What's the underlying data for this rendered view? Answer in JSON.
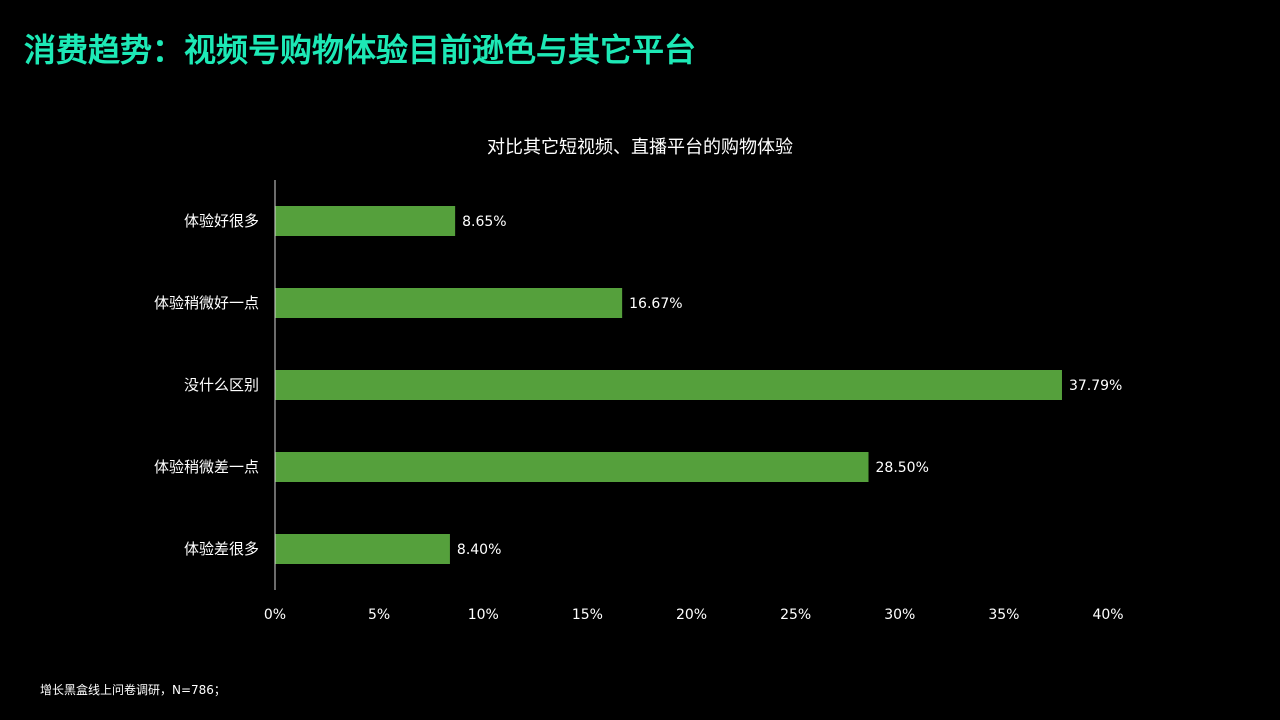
{
  "slide": {
    "title": "消费趋势：视频号购物体验目前逊色与其它平台",
    "footnote": "增长黑盒线上问卷调研，N=786；"
  },
  "colors": {
    "background": "#000000",
    "title": "#1de9b6",
    "bar": "#55a03c",
    "text": "#ffffff"
  },
  "chart_data": {
    "type": "bar",
    "orientation": "horizontal",
    "title": "对比其它短视频、直播平台的购物体验",
    "categories": [
      "体验好很多",
      "体验稍微好一点",
      "没什么区别",
      "体验稍微差一点",
      "体验差很多"
    ],
    "values": [
      8.65,
      16.67,
      37.79,
      28.5,
      8.4
    ],
    "value_labels": [
      "8.65%",
      "16.67%",
      "37.79%",
      "28.50%",
      "8.40%"
    ],
    "x_ticks": [
      "0%",
      "5%",
      "10%",
      "15%",
      "20%",
      "25%",
      "30%",
      "35%",
      "40%"
    ],
    "xlim": [
      0,
      40
    ],
    "xlabel": "",
    "ylabel": "",
    "grid": false,
    "legend": "none"
  }
}
